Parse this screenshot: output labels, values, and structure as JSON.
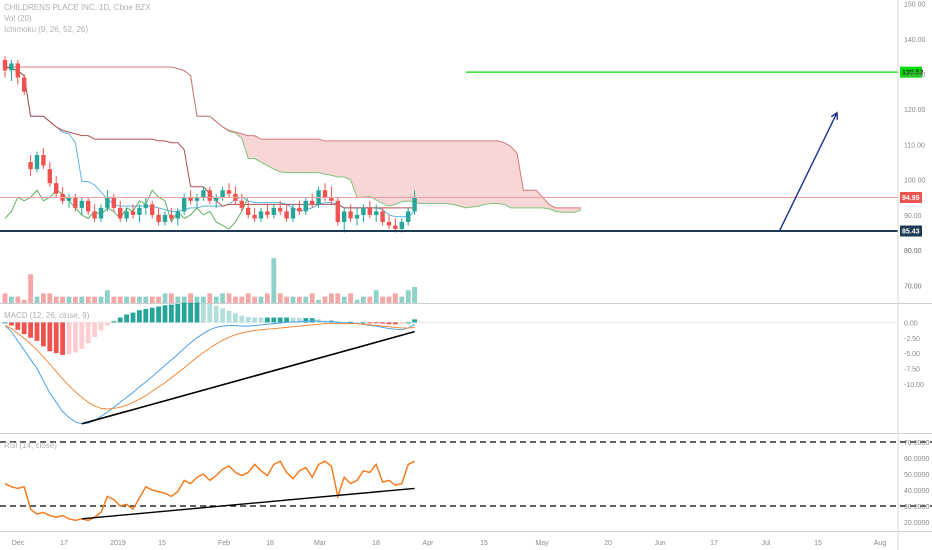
{
  "header": {
    "title": "CHILDRENS PLACE INC, 1D, Cboe BZX",
    "vol_legend": "Vol (20)",
    "ichimoku_legend": "Ichimoku (9, 26, 52, 26)"
  },
  "macd_legend": "MACD (12, 26, close, 9)",
  "rsi_legend": "RSI (14, close)",
  "colors": {
    "up": "#26a69a",
    "down": "#ef5350",
    "vol_up": "#8ed1c9",
    "vol_down": "#f5a6a6",
    "cloud_bear": "#f8cfcf",
    "cloud_bull": "#cfe8cf",
    "tenkan": "#5fb3e6",
    "kijun": "#b05050",
    "lead_a": "#7cc47c",
    "lead_b": "#d47a7a",
    "lagging": "#5fae5f",
    "macd": "#4da3e8",
    "signal": "#f08a3c",
    "rsi": "#f57c1f",
    "target": "#00dd00",
    "arrow": "#1a2d8f",
    "support": "#1f3a55"
  },
  "chart_data": [
    {
      "type": "candlestick",
      "title": "CHILDRENS PLACE INC, 1D, Cboe BZX",
      "x_ticks": [
        "Dec",
        "17",
        "2019",
        "15",
        "Feb",
        "18",
        "Mar",
        "18",
        "Apr",
        "15",
        "May",
        "20",
        "Jun",
        "17",
        "Jul",
        "15",
        "Aug"
      ],
      "ylim": [
        65,
        151
      ],
      "y_ticks": [
        150.0,
        140.0,
        130.0,
        120.0,
        110.0,
        100.0,
        90.0,
        80.0,
        70.0
      ],
      "price_labels": {
        "last": "94.95",
        "support": "85.43",
        "target": "130.52"
      },
      "levels": {
        "last": 94.95,
        "support": 85.43,
        "target": 130.52
      },
      "target_line": {
        "from_date_index": 72,
        "to_date_index": 142
      },
      "projection_arrow": {
        "start": [
          121,
          85.43
        ],
        "end": [
          130,
          119
        ]
      },
      "candles": [
        [
          0,
          134,
          135,
          129,
          131
        ],
        [
          1,
          131,
          134,
          128,
          133
        ],
        [
          2,
          133,
          134,
          127,
          129
        ],
        [
          3,
          129,
          130,
          124,
          125
        ],
        [
          4,
          105,
          107,
          101,
          103
        ],
        [
          5,
          103,
          108,
          102,
          107
        ],
        [
          6,
          107,
          109,
          103,
          104
        ],
        [
          7,
          103,
          105,
          98,
          99
        ],
        [
          8,
          99,
          101,
          95,
          96
        ],
        [
          9,
          96,
          98,
          93,
          94
        ],
        [
          10,
          94,
          96,
          92,
          95
        ],
        [
          11,
          95,
          96,
          91,
          92
        ],
        [
          12,
          92,
          95,
          90,
          94
        ],
        [
          13,
          94,
          95,
          90,
          91
        ],
        [
          14,
          91,
          93,
          88,
          89
        ],
        [
          15,
          89,
          93,
          88,
          92
        ],
        [
          16,
          92,
          97,
          91,
          95
        ],
        [
          17,
          95,
          96,
          91,
          92
        ],
        [
          18,
          92,
          94,
          88,
          89
        ],
        [
          19,
          89,
          92,
          88,
          91
        ],
        [
          20,
          91,
          93,
          89,
          90
        ],
        [
          21,
          90,
          93,
          88,
          92
        ],
        [
          22,
          92,
          95,
          90,
          93
        ],
        [
          23,
          93,
          94,
          89,
          90
        ],
        [
          24,
          90,
          92,
          87,
          88
        ],
        [
          25,
          88,
          91,
          87,
          90
        ],
        [
          26,
          90,
          92,
          88,
          89
        ],
        [
          27,
          89,
          92,
          87,
          91
        ],
        [
          28,
          91,
          96,
          90,
          95
        ],
        [
          29,
          95,
          97,
          93,
          94
        ],
        [
          30,
          94,
          96,
          92,
          95
        ],
        [
          31,
          95,
          98,
          94,
          97
        ],
        [
          32,
          97,
          98,
          93,
          94
        ],
        [
          33,
          94,
          96,
          92,
          95
        ],
        [
          34,
          95,
          98,
          94,
          97
        ],
        [
          35,
          97,
          99,
          95,
          96
        ],
        [
          36,
          96,
          98,
          93,
          94
        ],
        [
          37,
          94,
          96,
          91,
          92
        ],
        [
          38,
          92,
          94,
          89,
          90
        ],
        [
          39,
          90,
          92,
          88,
          89
        ],
        [
          40,
          89,
          92,
          88,
          91
        ],
        [
          41,
          91,
          93,
          89,
          90
        ],
        [
          42,
          90,
          93,
          89,
          92
        ],
        [
          43,
          92,
          94,
          90,
          91
        ],
        [
          44,
          91,
          93,
          88,
          89
        ],
        [
          45,
          89,
          93,
          88,
          92
        ],
        [
          46,
          92,
          94,
          90,
          91
        ],
        [
          47,
          91,
          95,
          90,
          94
        ],
        [
          48,
          94,
          96,
          92,
          93
        ],
        [
          49,
          93,
          98,
          92,
          97
        ],
        [
          50,
          97,
          99,
          94,
          95
        ],
        [
          51,
          95,
          98,
          93,
          94
        ],
        [
          52,
          94,
          95,
          87,
          88
        ],
        [
          53,
          88,
          92,
          85,
          91
        ],
        [
          54,
          91,
          93,
          88,
          89
        ],
        [
          55,
          89,
          92,
          87,
          90
        ],
        [
          56,
          90,
          93,
          88,
          92
        ],
        [
          57,
          92,
          94,
          89,
          90
        ],
        [
          58,
          90,
          93,
          88,
          91
        ],
        [
          59,
          91,
          92,
          87,
          88
        ],
        [
          60,
          88,
          90,
          86,
          87
        ],
        [
          61,
          87,
          89,
          85,
          86
        ],
        [
          62,
          86,
          89,
          85,
          88
        ],
        [
          63,
          88,
          92,
          87,
          91
        ],
        [
          64,
          91,
          97,
          90,
          95
        ]
      ]
    },
    {
      "type": "bar",
      "name": "Vol (20)",
      "volume_up": [
        4,
        2,
        1,
        2,
        3,
        2,
        2,
        1,
        2,
        3,
        2,
        1,
        2,
        2,
        3,
        2,
        4,
        2,
        1,
        2,
        3,
        2,
        2,
        1,
        2,
        3,
        2,
        2,
        2,
        3,
        2,
        2,
        1,
        2,
        3,
        2,
        2,
        1,
        2,
        3,
        2,
        2,
        14,
        4,
        2,
        2,
        3,
        2,
        2,
        1,
        2,
        2,
        3,
        2,
        2,
        1,
        2,
        3,
        4,
        2,
        2,
        3,
        2,
        4,
        5
      ],
      "volume_down": [
        3,
        3,
        2,
        1,
        9,
        4,
        3,
        3,
        2,
        2,
        3,
        2,
        3,
        2,
        2,
        3,
        3,
        2,
        2,
        3,
        2,
        3,
        3,
        2,
        2,
        2,
        3,
        2,
        2,
        3,
        2,
        3,
        3,
        2,
        2,
        3,
        2,
        2,
        3,
        2,
        2,
        3,
        4,
        3,
        2,
        3,
        2,
        2,
        3,
        2,
        2,
        3,
        3,
        2,
        3,
        2,
        3,
        2,
        3,
        2,
        2,
        3,
        2,
        3,
        4
      ],
      "y_ticks": [
        80.0,
        70.0
      ]
    },
    {
      "type": "line",
      "title": "MACD (12, 26, close, 9)",
      "ylim": [
        -18,
        3
      ],
      "y_ticks": [
        0.0,
        -2.5,
        -5.0,
        -7.5,
        -10.0
      ],
      "macd": [
        -0.5,
        -1.5,
        -3,
        -4.5,
        -6,
        -7.5,
        -9.5,
        -11.5,
        -13,
        -14.5,
        -15.5,
        -16.2,
        -16.5,
        -16.4,
        -16,
        -15.3,
        -14.6,
        -13.8,
        -13,
        -12.2,
        -11.4,
        -10.5,
        -9.7,
        -8.8,
        -7.9,
        -7,
        -6.1,
        -5.2,
        -4.2,
        -3.3,
        -2.5,
        -1.8,
        -1.2,
        -0.8,
        -0.6,
        -0.5,
        -0.5,
        -0.6,
        -0.6,
        -0.5,
        -0.4,
        -0.3,
        -0.2,
        -0.1,
        0,
        0.1,
        0.1,
        0.2,
        0.3,
        0.2,
        0.1,
        0.1,
        0,
        -0.1,
        -0.1,
        -0.2,
        -0.3,
        -0.5,
        -0.6,
        -0.8,
        -1,
        -1.1,
        -1.2,
        -0.9,
        -0.3
      ],
      "signal": [
        -0.5,
        -1,
        -1.8,
        -2.6,
        -3.5,
        -4.5,
        -5.6,
        -6.8,
        -8,
        -9.2,
        -10.3,
        -11.3,
        -12.2,
        -13,
        -13.6,
        -14,
        -14.1,
        -14,
        -13.8,
        -13.5,
        -13,
        -12.5,
        -11.9,
        -11.2,
        -10.5,
        -9.8,
        -9,
        -8.2,
        -7.4,
        -6.5,
        -5.7,
        -4.9,
        -4.2,
        -3.5,
        -2.9,
        -2.4,
        -2,
        -1.7,
        -1.5,
        -1.3,
        -1.2,
        -1.1,
        -1,
        -0.9,
        -0.8,
        -0.7,
        -0.6,
        -0.5,
        -0.4,
        -0.3,
        -0.2,
        -0.2,
        -0.2,
        -0.2,
        -0.2,
        -0.2,
        -0.3,
        -0.4,
        -0.5,
        -0.6,
        -0.7,
        -0.8,
        -0.9,
        -0.9,
        -0.8
      ],
      "trendline": {
        "from": [
          12,
          -16.5
        ],
        "to": [
          64,
          -1.5
        ]
      }
    },
    {
      "type": "line",
      "title": "RSI (14, close)",
      "ylim": [
        15,
        75
      ],
      "y_ticks": [
        70.0,
        60.0,
        50.0,
        40.0,
        30.0,
        20.0
      ],
      "bands": [
        70,
        30
      ],
      "rsi": [
        44,
        42,
        41,
        42,
        28,
        25,
        26,
        24,
        23,
        24,
        22,
        21,
        22,
        21,
        23,
        26,
        36,
        34,
        30,
        31,
        28,
        35,
        42,
        40,
        39,
        38,
        36,
        39,
        46,
        44,
        48,
        50,
        46,
        49,
        53,
        55,
        51,
        49,
        51,
        56,
        52,
        49,
        56,
        58,
        51,
        47,
        52,
        54,
        48,
        56,
        58,
        55,
        36,
        48,
        44,
        46,
        52,
        51,
        56,
        45,
        46,
        43,
        44,
        56,
        58
      ],
      "trendline": {
        "from": [
          12,
          22
        ],
        "to": [
          64,
          41
        ]
      }
    }
  ]
}
